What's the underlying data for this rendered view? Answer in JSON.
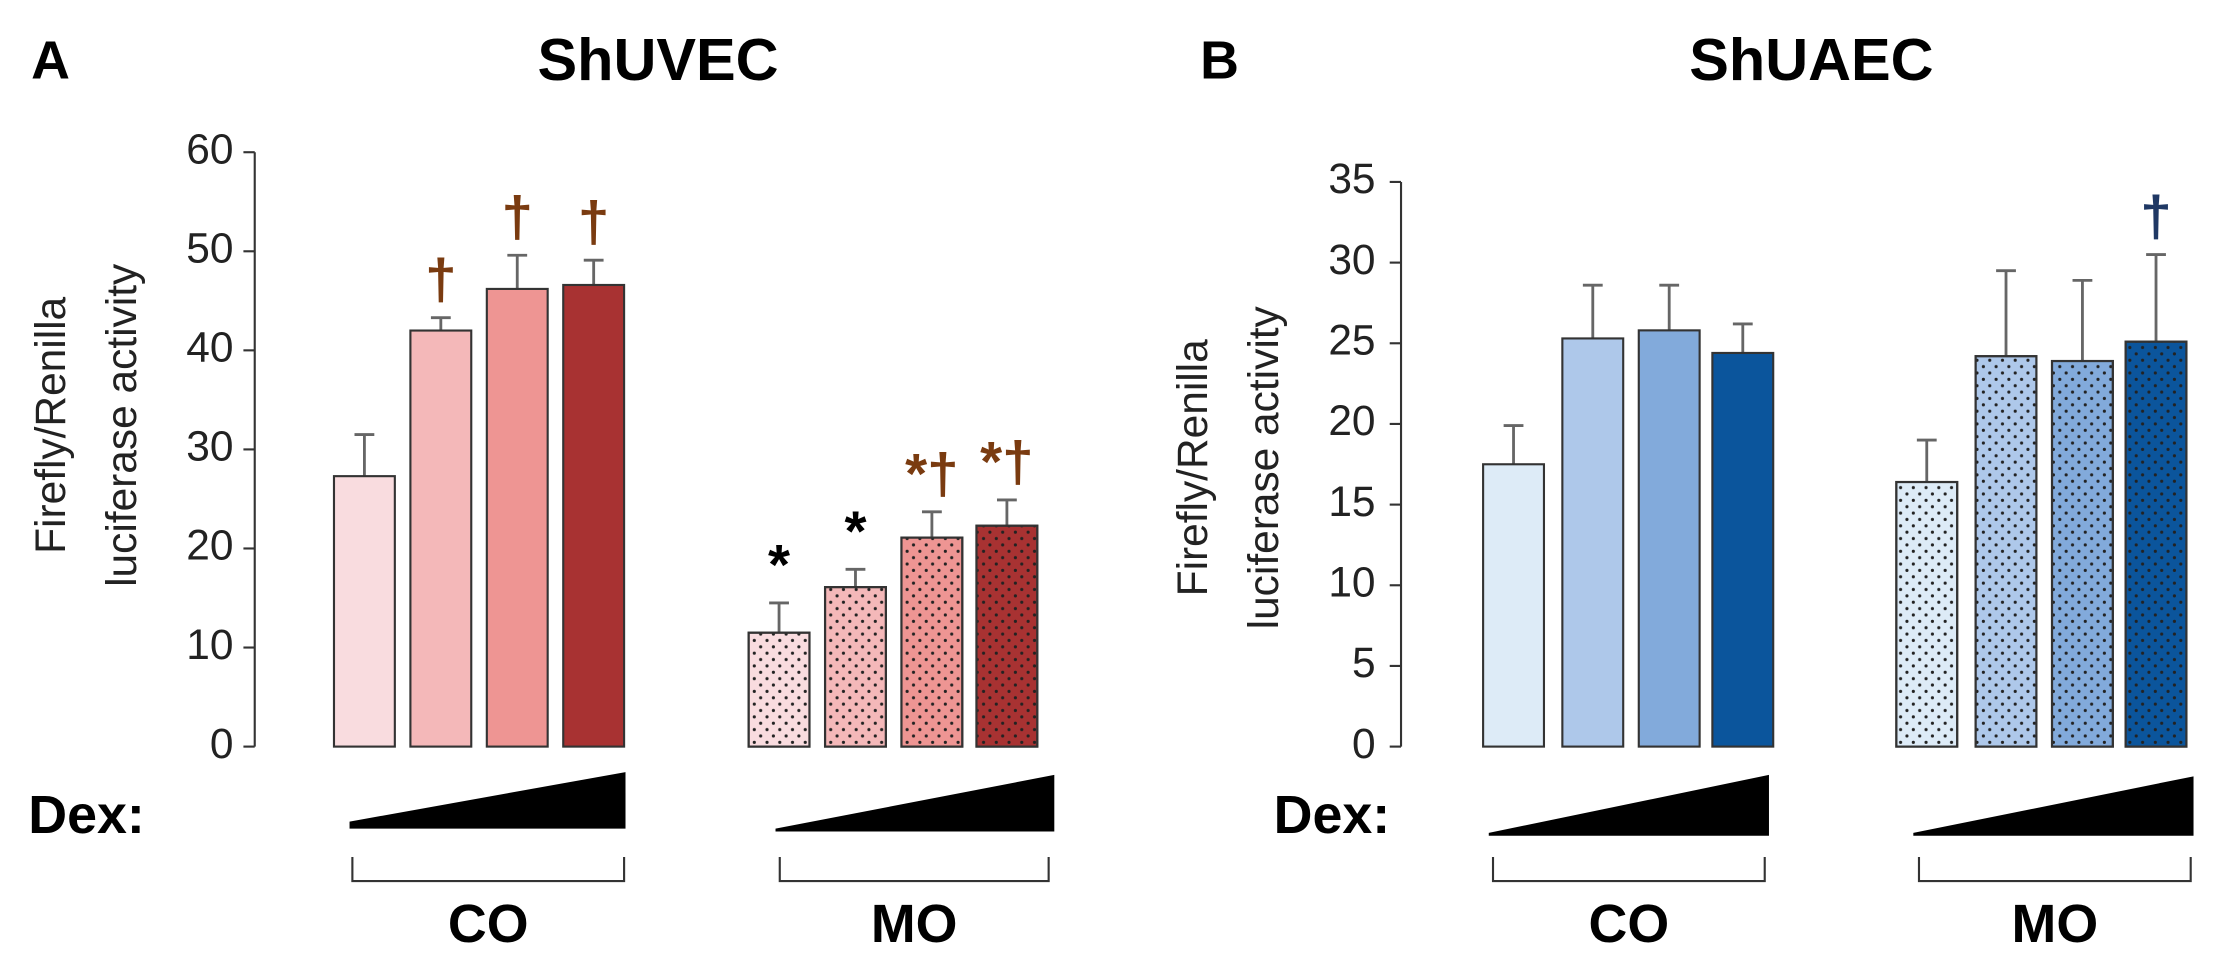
{
  "chart_data": [
    {
      "type": "bar",
      "panel": "A",
      "title": "ShUVEC",
      "ylabel": [
        "Firefly/Renilla",
        "luciferase activity"
      ],
      "dex_label": "Dex:",
      "ylim": [
        0,
        60
      ],
      "yticks": [
        0,
        10,
        20,
        30,
        40,
        50,
        60
      ],
      "colors": [
        "#f9dcdf",
        "#f4b8b9",
        "#ee9593",
        "#a83232"
      ],
      "annotation_colors": {
        "†": "#7a3b10",
        "*": "#000000",
        "*†": "#7a3b10"
      },
      "groups": [
        {
          "name": "CO",
          "pattern": false,
          "values": [
            27.3,
            42,
            46.2,
            46.6
          ],
          "errors": [
            4.2,
            1.3,
            3.4,
            2.5
          ],
          "annotations": [
            null,
            "†",
            "†",
            "†"
          ]
        },
        {
          "name": "MO",
          "pattern": true,
          "values": [
            11.5,
            16.1,
            21.1,
            22.3
          ],
          "errors": [
            3,
            1.8,
            2.6,
            2.6
          ],
          "annotations": [
            "*",
            "*",
            "*†",
            "*†"
          ]
        }
      ]
    },
    {
      "type": "bar",
      "panel": "B",
      "title": "ShUAEC",
      "ylabel": [
        "Firefly/Renilla",
        "luciferase activity"
      ],
      "dex_label": "Dex:",
      "ylim": [
        0,
        35
      ],
      "yticks": [
        0,
        5,
        10,
        15,
        20,
        25,
        30,
        35
      ],
      "colors": [
        "#ddebf7",
        "#aec8ea",
        "#82aadb",
        "#0b559c"
      ],
      "annotation_colors": {
        "†": "#1f3864"
      },
      "groups": [
        {
          "name": "CO",
          "pattern": false,
          "values": [
            17.5,
            25.3,
            25.8,
            24.4
          ],
          "errors": [
            2.4,
            3.3,
            2.8,
            1.8
          ],
          "annotations": [
            null,
            null,
            null,
            null
          ]
        },
        {
          "name": "MO",
          "pattern": true,
          "values": [
            16.4,
            24.2,
            23.9,
            25.1
          ],
          "errors": [
            2.6,
            5.3,
            5,
            5.4
          ],
          "annotations": [
            null,
            null,
            null,
            "†"
          ]
        }
      ]
    }
  ]
}
